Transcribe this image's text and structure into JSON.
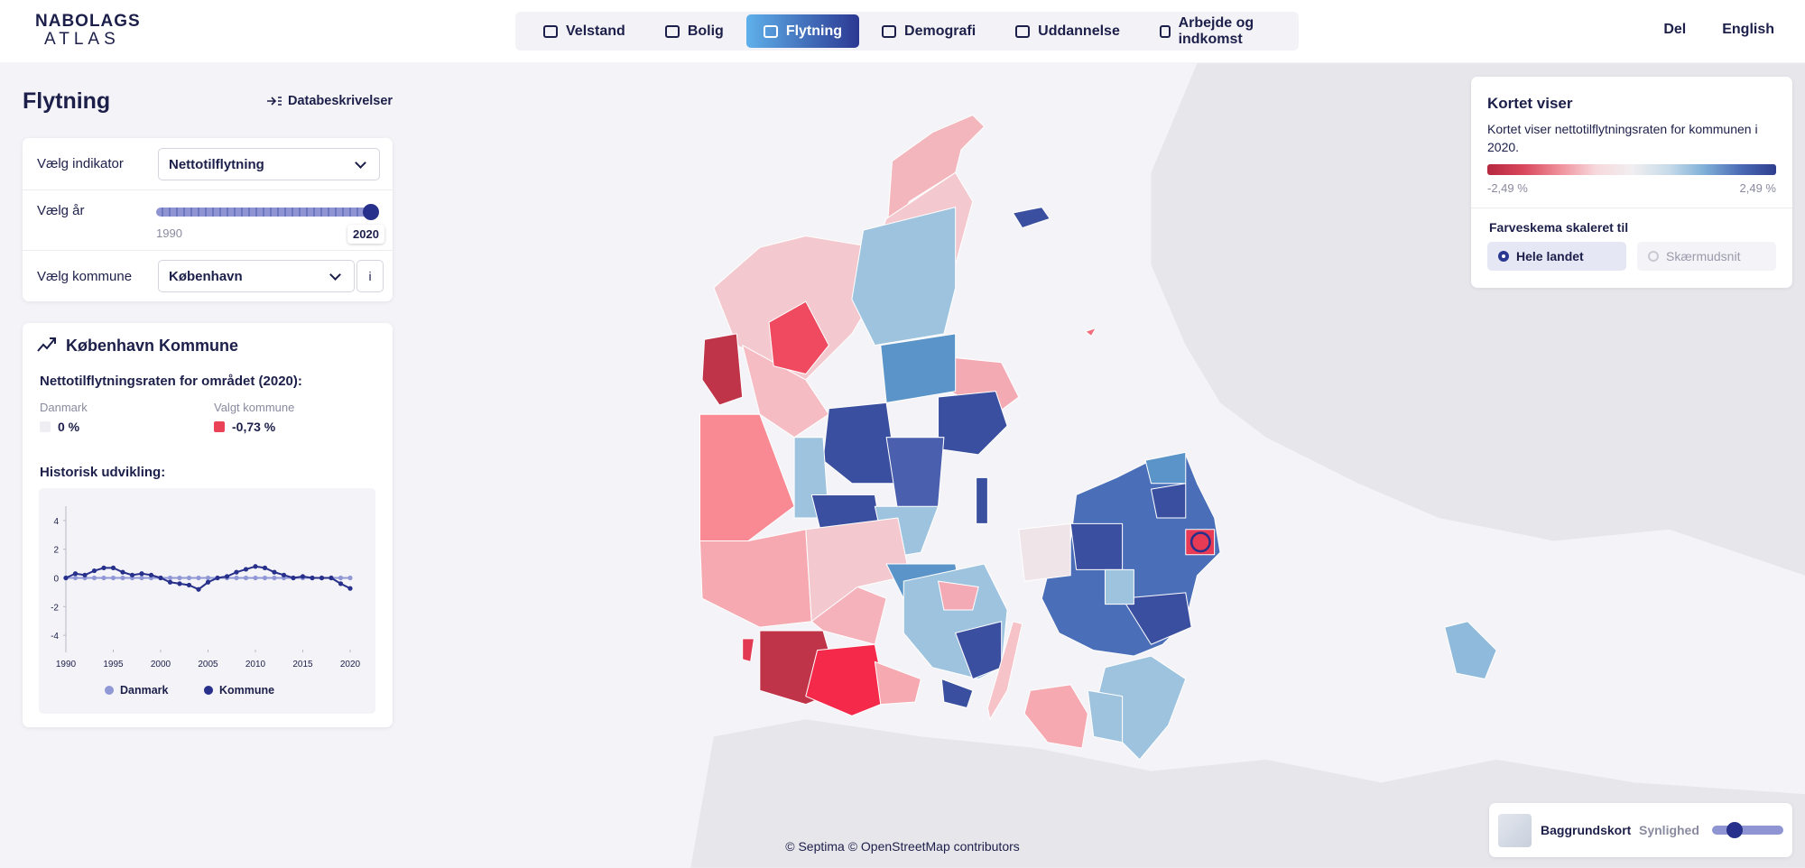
{
  "header": {
    "logo": [
      "NABOLAGS",
      "ATLAS"
    ],
    "nav": {
      "items": [
        "Velstand",
        "Bolig",
        "Flytning",
        "Demografi",
        "Uddannelse",
        "Arbejde og indkomst"
      ],
      "active": 2
    },
    "links": [
      "Del",
      "English"
    ]
  },
  "sidebar": {
    "title": "Flytning",
    "description_link": "Databeskrivelser",
    "indicator": {
      "label": "Vælg indikator",
      "value": "Nettotilflytning"
    },
    "year": {
      "label": "Vælg år",
      "min": 1990,
      "max": 2020,
      "value": 2020
    },
    "municipality": {
      "label": "Vælg kommune",
      "value": "København",
      "info": "i"
    }
  },
  "panel": {
    "title": "København Kommune",
    "subtitle": "Nettotilflytningsraten for området (2020):",
    "stats": [
      {
        "label": "Danmark",
        "value": "0 %",
        "color": "#efeef2"
      },
      {
        "label": "Valgt kommune",
        "value": "-0,73 %",
        "color": "#ea4358"
      }
    ],
    "history_label": "Historisk udvikling:"
  },
  "chart_data": {
    "type": "line",
    "x": [
      1990,
      1991,
      1992,
      1993,
      1994,
      1995,
      1996,
      1997,
      1998,
      1999,
      2000,
      2001,
      2002,
      2003,
      2004,
      2005,
      2006,
      2007,
      2008,
      2009,
      2010,
      2011,
      2012,
      2013,
      2014,
      2015,
      2016,
      2017,
      2018,
      2019,
      2020
    ],
    "series": [
      {
        "name": "Danmark",
        "color": "#9198d6",
        "values": [
          0,
          0,
          0,
          0,
          0,
          0,
          0,
          0,
          0,
          0,
          0,
          0,
          0,
          0,
          0,
          0,
          0,
          0,
          0,
          0,
          0,
          0,
          0,
          0,
          0,
          0,
          0,
          0,
          0,
          0,
          0
        ]
      },
      {
        "name": "Kommune",
        "color": "#27308a",
        "values": [
          0,
          0.3,
          0.2,
          0.5,
          0.7,
          0.7,
          0.4,
          0.2,
          0.3,
          0.2,
          0,
          -0.3,
          -0.4,
          -0.5,
          -0.8,
          -0.3,
          0,
          0.1,
          0.4,
          0.6,
          0.8,
          0.7,
          0.4,
          0.2,
          0,
          0.1,
          0,
          0,
          0,
          -0.4,
          -0.73
        ]
      }
    ],
    "xlim": [
      1990,
      2020
    ],
    "xticks": [
      1990,
      1995,
      2000,
      2005,
      2010,
      2015,
      2020
    ],
    "ylim": [
      -5,
      5
    ],
    "yticks": [
      -4,
      -2,
      0,
      2,
      4
    ]
  },
  "legend": {
    "title": "Kortet viser",
    "description": "Kortet viser nettotilflytningsraten for kommunen i 2020.",
    "colors": [
      "#b5283f",
      "#d9475c",
      "#ef8f9a",
      "#f7d8dc",
      "#f1eef0",
      "#c9dcea",
      "#7fb0d8",
      "#4b6cb6",
      "#2f3d8f"
    ],
    "min_label": "-2,49 %",
    "max_label": "2,49 %",
    "scale_title": "Farveskema skaleret til",
    "scale_options": [
      "Hele landet",
      "Skærmudsnit"
    ],
    "selected": 0
  },
  "basemap": {
    "label": "Baggrundskort",
    "opacity_label": "Synlighed"
  },
  "attribution": "© Septima © OpenStreetMap contributors"
}
